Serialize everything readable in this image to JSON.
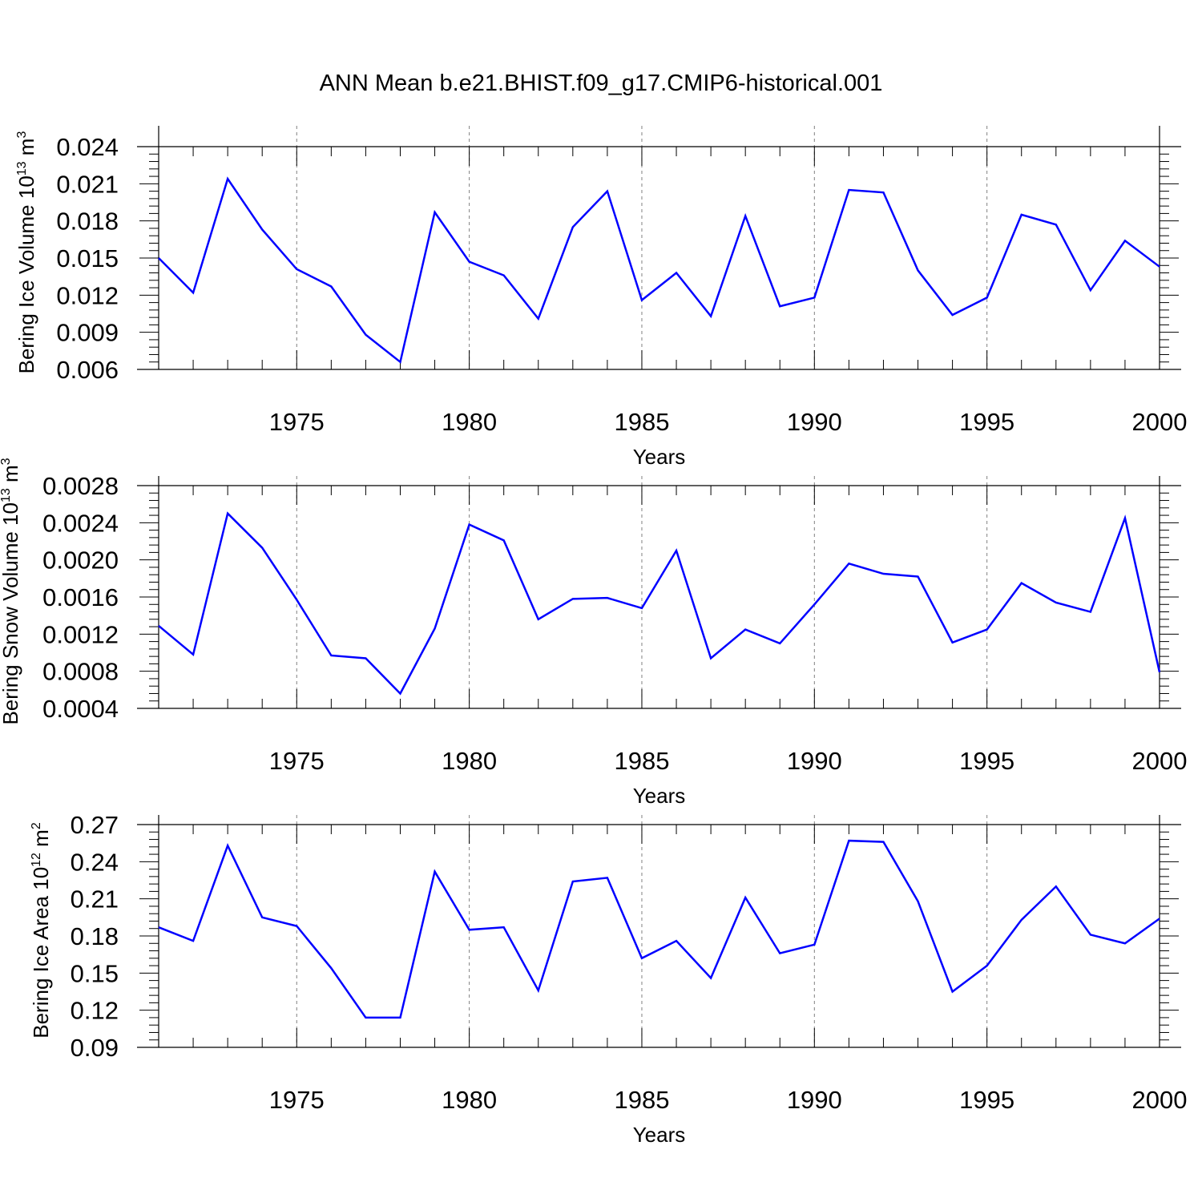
{
  "title": "ANN Mean b.e21.BHIST.f09_g17.CMIP6-historical.001",
  "colors": {
    "line": "#0000ff",
    "axis": "#000000",
    "grid": "#808080"
  },
  "chart_data": [
    {
      "type": "line",
      "ylabel": "Bering Ice Volume 10",
      "yunit_exp": "13",
      "yunit_tail": "m",
      "yunit_tail_exp": "3",
      "xlabel": "Years",
      "xlim": [
        1971,
        2000
      ],
      "ylim": [
        0.006,
        0.024
      ],
      "yticks": [
        0.006,
        0.009,
        0.012,
        0.015,
        0.018,
        0.021,
        0.024
      ],
      "ytick_labels": [
        "0.006",
        "0.009",
        "0.012",
        "0.015",
        "0.018",
        "0.021",
        "0.024"
      ],
      "xticks": [
        1975,
        1980,
        1985,
        1990,
        1995,
        2000
      ],
      "xtick_labels": [
        "1975",
        "1980",
        "1985",
        "1990",
        "1995",
        "2000"
      ],
      "grid": "vertical dashed at major x ticks",
      "x": [
        1971,
        1972,
        1973,
        1974,
        1975,
        1976,
        1977,
        1978,
        1979,
        1980,
        1981,
        1982,
        1983,
        1984,
        1985,
        1986,
        1987,
        1988,
        1989,
        1990,
        1991,
        1992,
        1993,
        1994,
        1995,
        1996,
        1997,
        1998,
        1999,
        2000
      ],
      "series": [
        {
          "values": [
            0.015,
            0.0122,
            0.0214,
            0.0173,
            0.0141,
            0.0127,
            0.0088,
            0.0066,
            0.0187,
            0.0147,
            0.0136,
            0.0101,
            0.0175,
            0.0204,
            0.0116,
            0.0138,
            0.0103,
            0.0184,
            0.0111,
            0.0118,
            0.0205,
            0.0203,
            0.014,
            0.0104,
            0.0118,
            0.0185,
            0.0177,
            0.0124,
            0.0164,
            0.0143
          ]
        }
      ]
    },
    {
      "type": "line",
      "ylabel": "Bering Snow Volume 10",
      "yunit_exp": "13",
      "yunit_tail": "m",
      "yunit_tail_exp": "3",
      "xlabel": "Years",
      "xlim": [
        1971,
        2000
      ],
      "ylim": [
        0.0004,
        0.0028
      ],
      "yticks": [
        0.0004,
        0.0008,
        0.0012,
        0.0016,
        0.002,
        0.0024,
        0.0028
      ],
      "ytick_labels": [
        "0.0004",
        "0.0008",
        "0.0012",
        "0.0016",
        "0.0020",
        "0.0024",
        "0.0028"
      ],
      "xticks": [
        1975,
        1980,
        1985,
        1990,
        1995,
        2000
      ],
      "xtick_labels": [
        "1975",
        "1980",
        "1985",
        "1990",
        "1995",
        "2000"
      ],
      "grid": "vertical dashed at major x ticks",
      "x": [
        1971,
        1972,
        1973,
        1974,
        1975,
        1976,
        1977,
        1978,
        1979,
        1980,
        1981,
        1982,
        1983,
        1984,
        1985,
        1986,
        1987,
        1988,
        1989,
        1990,
        1991,
        1992,
        1993,
        1994,
        1995,
        1996,
        1997,
        1998,
        1999,
        2000
      ],
      "series": [
        {
          "values": [
            0.00129,
            0.00098,
            0.0025,
            0.00213,
            0.00157,
            0.00097,
            0.00094,
            0.00056,
            0.00126,
            0.00238,
            0.00221,
            0.00136,
            0.00158,
            0.00159,
            0.00148,
            0.0021,
            0.00094,
            0.00125,
            0.0011,
            0.00152,
            0.00196,
            0.00185,
            0.00182,
            0.00111,
            0.00125,
            0.00175,
            0.00154,
            0.00144,
            0.00245,
            0.00079
          ]
        }
      ]
    },
    {
      "type": "line",
      "ylabel": "Bering Ice Area 10",
      "yunit_exp": "12",
      "yunit_tail": "m",
      "yunit_tail_exp": "2",
      "xlabel": "Years",
      "xlim": [
        1971,
        2000
      ],
      "ylim": [
        0.09,
        0.27
      ],
      "yticks": [
        0.09,
        0.12,
        0.15,
        0.18,
        0.21,
        0.24,
        0.27
      ],
      "ytick_labels": [
        "0.09",
        "0.12",
        "0.15",
        "0.18",
        "0.21",
        "0.24",
        "0.27"
      ],
      "xticks": [
        1975,
        1980,
        1985,
        1990,
        1995,
        2000
      ],
      "xtick_labels": [
        "1975",
        "1980",
        "1985",
        "1990",
        "1995",
        "2000"
      ],
      "grid": "vertical dashed at major x ticks",
      "x": [
        1971,
        1972,
        1973,
        1974,
        1975,
        1976,
        1977,
        1978,
        1979,
        1980,
        1981,
        1982,
        1983,
        1984,
        1985,
        1986,
        1987,
        1988,
        1989,
        1990,
        1991,
        1992,
        1993,
        1994,
        1995,
        1996,
        1997,
        1998,
        1999,
        2000
      ],
      "series": [
        {
          "values": [
            0.187,
            0.176,
            0.253,
            0.195,
            0.188,
            0.154,
            0.114,
            0.114,
            0.232,
            0.185,
            0.187,
            0.136,
            0.224,
            0.227,
            0.162,
            0.176,
            0.146,
            0.211,
            0.166,
            0.173,
            0.257,
            0.256,
            0.208,
            0.135,
            0.156,
            0.193,
            0.22,
            0.181,
            0.174,
            0.194
          ]
        }
      ]
    }
  ]
}
